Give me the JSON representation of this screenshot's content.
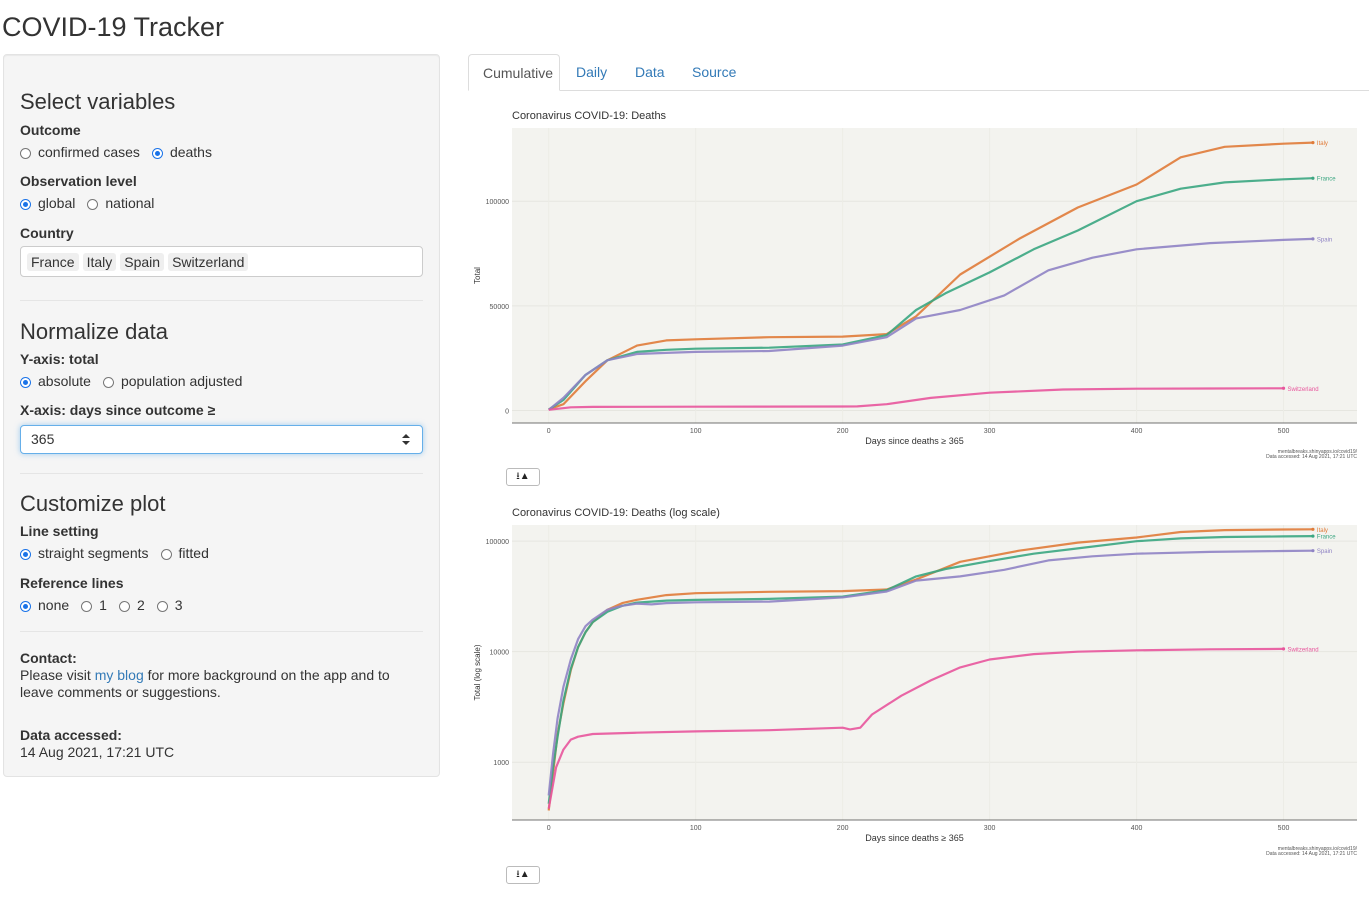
{
  "app": {
    "title": "COVID-19 Tracker"
  },
  "sidebar": {
    "select_variables": {
      "title": "Select variables",
      "outcome": {
        "label": "Outcome",
        "options": [
          "confirmed cases",
          "deaths"
        ],
        "selected": "deaths"
      },
      "observation_level": {
        "label": "Observation level",
        "options": [
          "global",
          "national"
        ],
        "selected": "global"
      },
      "country": {
        "label": "Country",
        "selected": [
          "France",
          "Italy",
          "Spain",
          "Switzerland"
        ]
      }
    },
    "normalize": {
      "title": "Normalize data",
      "y_axis": {
        "label": "Y-axis: total",
        "options": [
          "absolute",
          "population adjusted"
        ],
        "selected": "absolute"
      },
      "x_axis": {
        "label": "X-axis: days since outcome ≥",
        "value": "365"
      }
    },
    "customize": {
      "title": "Customize plot",
      "line_setting": {
        "label": "Line setting",
        "options": [
          "straight segments",
          "fitted"
        ],
        "selected": "straight segments"
      },
      "reference_lines": {
        "label": "Reference lines",
        "options": [
          "none",
          "1",
          "2",
          "3"
        ],
        "selected": "none"
      }
    },
    "contact": {
      "label": "Contact:",
      "text_before": "Please visit ",
      "link": "my blog",
      "text_after": " for more background on the app and to leave comments or suggestions."
    },
    "data_accessed": {
      "label": "Data accessed:",
      "value": "14 Aug 2021, 17:21 UTC"
    }
  },
  "tabs": [
    {
      "label": "Cumulative",
      "active": true
    },
    {
      "label": "Daily",
      "active": false
    },
    {
      "label": "Data",
      "active": false
    },
    {
      "label": "Source",
      "active": false
    }
  ],
  "download_icon": "download-icon",
  "colors": {
    "Italy": "#e07b39",
    "France": "#3aa681",
    "Spain": "#8f83c4",
    "Switzerland": "#e8559c",
    "panel": "#f3f3ef"
  },
  "chart_data": [
    {
      "type": "line",
      "title": "Coronavirus COVID-19: Deaths",
      "xlabel": "Days since deaths ≥ 365",
      "ylabel": "Total",
      "xlim": [
        -25,
        550
      ],
      "ylim": [
        -6000,
        135000
      ],
      "x_ticks": [
        0,
        100,
        200,
        300,
        400,
        500
      ],
      "y_ticks": [
        0,
        50000,
        100000
      ],
      "y_tick_labels": [
        "0",
        "50000",
        "100000"
      ],
      "caption": [
        "mentalbreaks.shinyapps.io/covid19/",
        "Data accessed: 14 Aug 2021, 17:21 UTC"
      ],
      "series": [
        {
          "name": "Italy",
          "points": [
            [
              0,
              500
            ],
            [
              10,
              3000
            ],
            [
              25,
              14000
            ],
            [
              40,
              24000
            ],
            [
              60,
              31000
            ],
            [
              80,
              33500
            ],
            [
              100,
              34000
            ],
            [
              150,
              35000
            ],
            [
              200,
              35300
            ],
            [
              230,
              36500
            ],
            [
              250,
              45000
            ],
            [
              280,
              65000
            ],
            [
              320,
              82000
            ],
            [
              360,
              97000
            ],
            [
              400,
              108000
            ],
            [
              430,
              121000
            ],
            [
              460,
              126000
            ],
            [
              500,
              127500
            ],
            [
              520,
              128000
            ]
          ]
        },
        {
          "name": "France",
          "points": [
            [
              0,
              400
            ],
            [
              10,
              5000
            ],
            [
              25,
              17000
            ],
            [
              40,
              24000
            ],
            [
              60,
              28000
            ],
            [
              80,
              29000
            ],
            [
              100,
              29500
            ],
            [
              150,
              30000
            ],
            [
              200,
              31500
            ],
            [
              230,
              36000
            ],
            [
              250,
              48000
            ],
            [
              270,
              56000
            ],
            [
              300,
              66000
            ],
            [
              330,
              77000
            ],
            [
              360,
              86000
            ],
            [
              400,
              100000
            ],
            [
              430,
              106000
            ],
            [
              460,
              109000
            ],
            [
              500,
              110500
            ],
            [
              520,
              111000
            ]
          ]
        },
        {
          "name": "Spain",
          "points": [
            [
              0,
              300
            ],
            [
              10,
              6000
            ],
            [
              25,
              17000
            ],
            [
              40,
              24000
            ],
            [
              60,
              27000
            ],
            [
              80,
              27500
            ],
            [
              100,
              28000
            ],
            [
              150,
              28400
            ],
            [
              200,
              31000
            ],
            [
              230,
              35000
            ],
            [
              250,
              44000
            ],
            [
              280,
              48000
            ],
            [
              310,
              55000
            ],
            [
              340,
              67000
            ],
            [
              370,
              73000
            ],
            [
              400,
              77000
            ],
            [
              450,
              80000
            ],
            [
              500,
              81500
            ],
            [
              520,
              82000
            ]
          ]
        },
        {
          "name": "Switzerland",
          "points": [
            [
              0,
              300
            ],
            [
              15,
              1500
            ],
            [
              30,
              1700
            ],
            [
              100,
              1800
            ],
            [
              200,
              1900
            ],
            [
              210,
              1950
            ],
            [
              230,
              3000
            ],
            [
              260,
              6000
            ],
            [
              300,
              8500
            ],
            [
              350,
              10000
            ],
            [
              400,
              10400
            ],
            [
              450,
              10500
            ],
            [
              500,
              10600
            ]
          ]
        }
      ]
    },
    {
      "type": "line",
      "title": "Coronavirus COVID-19: Deaths (log scale)",
      "xlabel": "Days since deaths ≥ 365",
      "ylabel": "Total (log scale)",
      "log_y": true,
      "xlim": [
        -25,
        550
      ],
      "ylim": [
        300,
        140000
      ],
      "x_ticks": [
        0,
        100,
        200,
        300,
        400,
        500
      ],
      "y_ticks": [
        1000,
        10000,
        100000
      ],
      "y_tick_labels": [
        "1000",
        "10000",
        "100000"
      ],
      "caption": [
        "mentalbreaks.shinyapps.io/covid19/",
        "Data accessed: 14 Aug 2021, 17:21 UTC"
      ],
      "series": [
        {
          "name": "Italy",
          "points": [
            [
              0,
              366
            ],
            [
              3,
              800
            ],
            [
              6,
              1800
            ],
            [
              10,
              3400
            ],
            [
              15,
              6800
            ],
            [
              20,
              11000
            ],
            [
              25,
              15000
            ],
            [
              30,
              18500
            ],
            [
              40,
              24000
            ],
            [
              50,
              27500
            ],
            [
              60,
              29500
            ],
            [
              80,
              32500
            ],
            [
              100,
              33800
            ],
            [
              150,
              34800
            ],
            [
              200,
              35300
            ],
            [
              230,
              36500
            ],
            [
              250,
              45000
            ],
            [
              280,
              65000
            ],
            [
              320,
              82000
            ],
            [
              360,
              97000
            ],
            [
              400,
              108000
            ],
            [
              430,
              121000
            ],
            [
              460,
              126000
            ],
            [
              500,
              127500
            ],
            [
              520,
              128000
            ]
          ]
        },
        {
          "name": "France",
          "points": [
            [
              0,
              420
            ],
            [
              3,
              900
            ],
            [
              6,
              1700
            ],
            [
              10,
              3600
            ],
            [
              15,
              7000
            ],
            [
              20,
              11000
            ],
            [
              25,
              15000
            ],
            [
              30,
              18500
            ],
            [
              40,
              23000
            ],
            [
              50,
              26000
            ],
            [
              60,
              27800
            ],
            [
              80,
              29000
            ],
            [
              100,
              29400
            ],
            [
              150,
              30000
            ],
            [
              200,
              31500
            ],
            [
              230,
              36000
            ],
            [
              250,
              48000
            ],
            [
              270,
              56000
            ],
            [
              300,
              66000
            ],
            [
              330,
              77000
            ],
            [
              360,
              86000
            ],
            [
              400,
              100000
            ],
            [
              430,
              106000
            ],
            [
              460,
              109000
            ],
            [
              500,
              110500
            ],
            [
              520,
              111000
            ]
          ]
        },
        {
          "name": "Spain",
          "points": [
            [
              0,
              500
            ],
            [
              3,
              1200
            ],
            [
              6,
              2500
            ],
            [
              10,
              4800
            ],
            [
              15,
              8500
            ],
            [
              20,
              13000
            ],
            [
              25,
              17000
            ],
            [
              30,
              19500
            ],
            [
              40,
              24000
            ],
            [
              50,
              26000
            ],
            [
              60,
              27200
            ],
            [
              70,
              26800
            ],
            [
              80,
              27500
            ],
            [
              100,
              28000
            ],
            [
              150,
              28400
            ],
            [
              200,
              31000
            ],
            [
              230,
              35000
            ],
            [
              250,
              44000
            ],
            [
              280,
              48000
            ],
            [
              310,
              55000
            ],
            [
              340,
              67000
            ],
            [
              370,
              73000
            ],
            [
              400,
              77000
            ],
            [
              450,
              80000
            ],
            [
              500,
              81500
            ],
            [
              520,
              82000
            ]
          ]
        },
        {
          "name": "Switzerland",
          "points": [
            [
              0,
              380
            ],
            [
              5,
              900
            ],
            [
              10,
              1300
            ],
            [
              15,
              1600
            ],
            [
              20,
              1700
            ],
            [
              30,
              1800
            ],
            [
              60,
              1850
            ],
            [
              100,
              1900
            ],
            [
              150,
              1950
            ],
            [
              200,
              2050
            ],
            [
              205,
              1980
            ],
            [
              212,
              2050
            ],
            [
              220,
              2700
            ],
            [
              240,
              4000
            ],
            [
              260,
              5500
            ],
            [
              280,
              7200
            ],
            [
              300,
              8500
            ],
            [
              330,
              9500
            ],
            [
              360,
              10000
            ],
            [
              400,
              10300
            ],
            [
              450,
              10500
            ],
            [
              500,
              10600
            ]
          ]
        }
      ]
    }
  ]
}
